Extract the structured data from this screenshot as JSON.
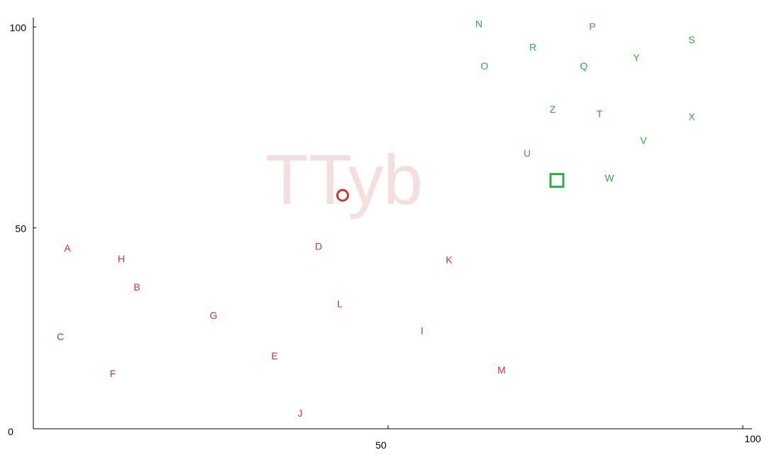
{
  "chart_data": {
    "type": "scatter",
    "title": "",
    "xlabel": "",
    "ylabel": "",
    "xlim": [
      0,
      100
    ],
    "ylim": [
      0,
      100
    ],
    "x_ticks": [
      {
        "value": 0,
        "label": "0"
      },
      {
        "value": 50,
        "label": "50"
      },
      {
        "value": 100,
        "label": "100"
      }
    ],
    "y_ticks": [
      {
        "value": 50,
        "label": "50"
      },
      {
        "value": 100,
        "label": "100"
      }
    ],
    "grid": false,
    "watermark": "TTyb",
    "series": [
      {
        "color": "#cc3333",
        "points": [
          {
            "label": "A",
            "x": 4.8,
            "y": 45.0
          },
          {
            "label": "H",
            "x": 12.4,
            "y": 42.3
          },
          {
            "label": "B",
            "x": 14.6,
            "y": 35.3
          },
          {
            "label": "G",
            "x": 25.4,
            "y": 28.2
          },
          {
            "label": "C",
            "x": 3.8,
            "y": 22.9
          },
          {
            "label": "F",
            "x": 11.2,
            "y": 13.8
          },
          {
            "label": "D",
            "x": 40.2,
            "y": 45.4
          },
          {
            "label": "K",
            "x": 58.6,
            "y": 42.1
          },
          {
            "label": "L",
            "x": 43.2,
            "y": 31.1
          },
          {
            "label": "I",
            "x": 54.8,
            "y": 24.4
          },
          {
            "label": "E",
            "x": 34.0,
            "y": 18.2
          },
          {
            "label": "M",
            "x": 66.0,
            "y": 14.6
          },
          {
            "label": "J",
            "x": 37.6,
            "y": 3.9
          }
        ],
        "marker": {
          "x": 43.6,
          "y": 58.1,
          "shape": "circle"
        }
      },
      {
        "color": "#33aa44",
        "points": [
          {
            "label": "N",
            "x": 62.8,
            "y": 100.8
          },
          {
            "label": "P",
            "x": 78.8,
            "y": 100.1
          },
          {
            "label": "R",
            "x": 70.4,
            "y": 95.0
          },
          {
            "label": "S",
            "x": 92.8,
            "y": 96.8
          },
          {
            "label": "O",
            "x": 63.6,
            "y": 90.3
          },
          {
            "label": "Q",
            "x": 77.6,
            "y": 90.3
          },
          {
            "label": "Y",
            "x": 85.0,
            "y": 92.4
          },
          {
            "label": "Z",
            "x": 73.2,
            "y": 79.5
          },
          {
            "label": "T",
            "x": 79.8,
            "y": 78.4
          },
          {
            "label": "X",
            "x": 92.8,
            "y": 77.7
          },
          {
            "label": "V",
            "x": 86.0,
            "y": 71.8
          },
          {
            "label": "U",
            "x": 69.6,
            "y": 68.6
          },
          {
            "label": "W",
            "x": 81.2,
            "y": 62.4
          }
        ],
        "marker": {
          "x": 73.8,
          "y": 61.8,
          "shape": "square"
        }
      }
    ]
  }
}
